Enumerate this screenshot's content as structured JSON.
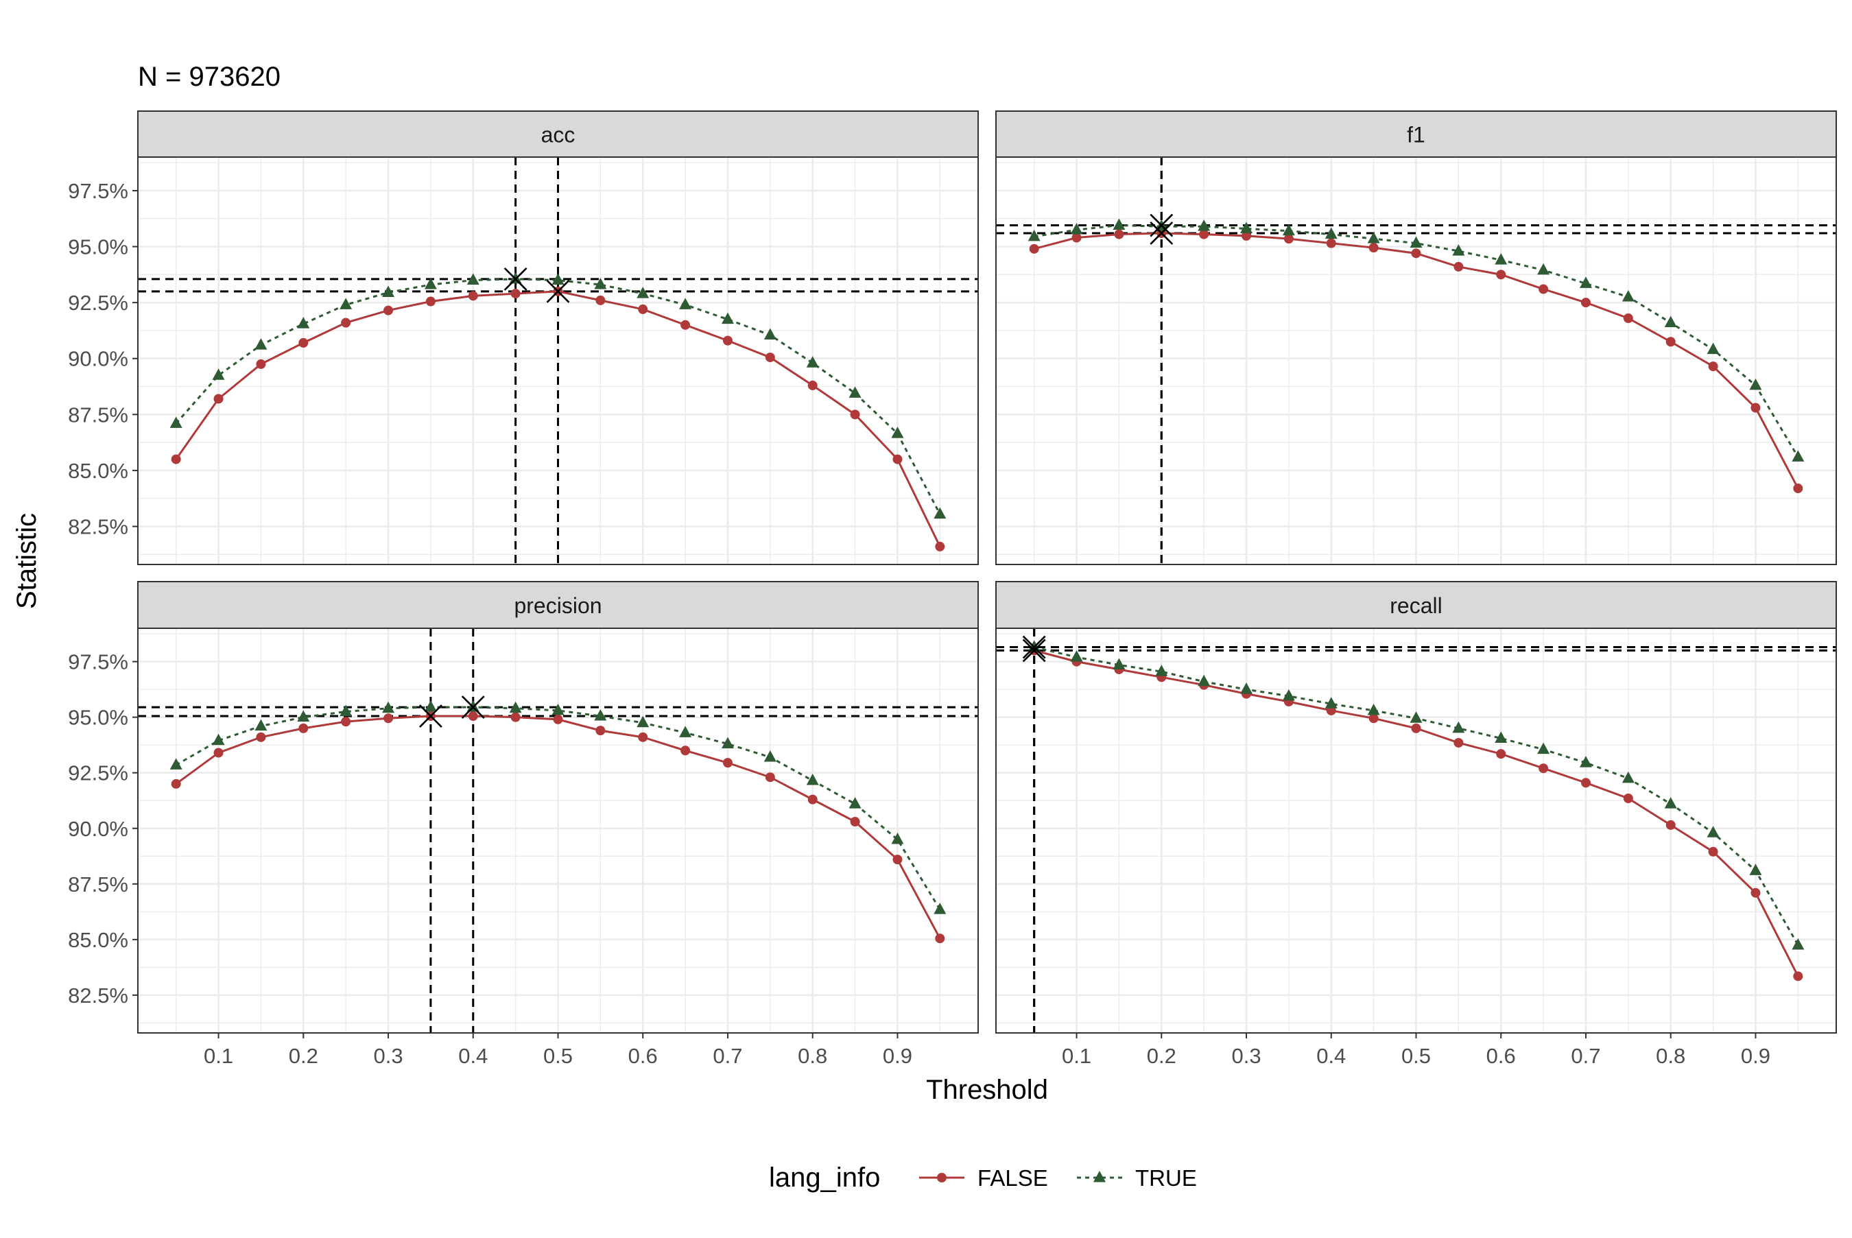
{
  "subtitle": "N = 973620",
  "xlabel": "Threshold",
  "ylabel": "Statistic",
  "legend": {
    "title": "lang_info",
    "entries": [
      {
        "label": "FALSE",
        "series": "FALSE"
      },
      {
        "label": "TRUE",
        "series": "TRUE"
      }
    ],
    "placement": "bottom"
  },
  "colors": {
    "FALSE": "#B03A3A",
    "TRUE": "#2E5A34",
    "strip_bg": "#D9D9D9",
    "grid": "#EBEBEB",
    "panel_border": "#333333",
    "marker": "#000000"
  },
  "chart_data": {
    "type": "line",
    "facets": [
      "acc",
      "f1",
      "precision",
      "recall"
    ],
    "layout": "2x2",
    "x": [
      0.05,
      0.1,
      0.15,
      0.2,
      0.25,
      0.3,
      0.35,
      0.4,
      0.45,
      0.5,
      0.55,
      0.6,
      0.65,
      0.7,
      0.75,
      0.8,
      0.85,
      0.9,
      0.95
    ],
    "x_ticks": [
      "0.1",
      "0.2",
      "0.3",
      "0.4",
      "0.5",
      "0.6",
      "0.7",
      "0.8",
      "0.9"
    ],
    "x_tick_values": [
      0.1,
      0.2,
      0.3,
      0.4,
      0.5,
      0.6,
      0.7,
      0.8,
      0.9
    ],
    "xlim": [
      0.005,
      0.995
    ],
    "y_ticks": [
      "82.5%",
      "85.0%",
      "87.5%",
      "90.0%",
      "92.5%",
      "95.0%",
      "97.5%"
    ],
    "y_tick_values": [
      0.825,
      0.85,
      0.875,
      0.9,
      0.925,
      0.95,
      0.975
    ],
    "ylim": [
      0.808,
      0.99
    ],
    "grid": true,
    "panels": [
      {
        "name": "acc",
        "series": [
          {
            "name": "FALSE",
            "values": [
              0.855,
              0.882,
              0.8975,
              0.907,
              0.916,
              0.9215,
              0.9255,
              0.928,
              0.929,
              0.93,
              0.926,
              0.922,
              0.915,
              0.908,
              0.9005,
              0.888,
              0.875,
              0.855,
              0.816
            ]
          },
          {
            "name": "TRUE",
            "values": [
              0.871,
              0.8925,
              0.906,
              0.9155,
              0.924,
              0.9295,
              0.933,
              0.935,
              0.9355,
              0.935,
              0.933,
              0.929,
              0.924,
              0.9175,
              0.9105,
              0.898,
              0.8845,
              0.8665,
              0.8305
            ]
          }
        ],
        "best": [
          {
            "series": "FALSE",
            "x": 0.5,
            "y": 0.93
          },
          {
            "series": "TRUE",
            "x": 0.45,
            "y": 0.9355
          }
        ]
      },
      {
        "name": "f1",
        "series": [
          {
            "name": "FALSE",
            "values": [
              0.949,
              0.954,
              0.9555,
              0.956,
              0.9555,
              0.9548,
              0.9535,
              0.9515,
              0.9495,
              0.947,
              0.941,
              0.9375,
              0.931,
              0.925,
              0.918,
              0.9075,
              0.8965,
              0.878,
              0.842
            ]
          },
          {
            "name": "TRUE",
            "values": [
              0.9545,
              0.9575,
              0.9595,
              0.959,
              0.959,
              0.958,
              0.957,
              0.9555,
              0.9535,
              0.9515,
              0.948,
              0.944,
              0.9395,
              0.9335,
              0.9275,
              0.916,
              0.904,
              0.888,
              0.856
            ]
          }
        ],
        "best": [
          {
            "series": "FALSE",
            "x": 0.2,
            "y": 0.956
          },
          {
            "series": "TRUE",
            "x": 0.2,
            "y": 0.9595
          }
        ]
      },
      {
        "name": "precision",
        "series": [
          {
            "name": "FALSE",
            "values": [
              0.92,
              0.934,
              0.941,
              0.945,
              0.948,
              0.9495,
              0.9505,
              0.9505,
              0.95,
              0.949,
              0.944,
              0.941,
              0.935,
              0.9295,
              0.923,
              0.913,
              0.903,
              0.886,
              0.8505
            ]
          },
          {
            "name": "TRUE",
            "values": [
              0.9285,
              0.9395,
              0.946,
              0.95,
              0.9525,
              0.954,
              0.9545,
              0.9545,
              0.954,
              0.953,
              0.9505,
              0.9475,
              0.943,
              0.938,
              0.932,
              0.9215,
              0.911,
              0.895,
              0.8635
            ]
          }
        ],
        "best": [
          {
            "series": "FALSE",
            "x": 0.35,
            "y": 0.9505
          },
          {
            "series": "TRUE",
            "x": 0.4,
            "y": 0.9545
          }
        ]
      },
      {
        "name": "recall",
        "series": [
          {
            "name": "FALSE",
            "values": [
              0.98,
              0.975,
              0.9715,
              0.968,
              0.9645,
              0.9605,
              0.957,
              0.953,
              0.9495,
              0.945,
              0.9385,
              0.9335,
              0.927,
              0.9205,
              0.9135,
              0.9015,
              0.8895,
              0.871,
              0.8335
            ]
          },
          {
            "name": "TRUE",
            "values": [
              0.9815,
              0.977,
              0.9735,
              0.9705,
              0.966,
              0.9625,
              0.9595,
              0.956,
              0.953,
              0.9495,
              0.945,
              0.9405,
              0.9355,
              0.9295,
              0.9225,
              0.911,
              0.898,
              0.881,
              0.8475
            ]
          }
        ],
        "best": [
          {
            "series": "FALSE",
            "x": 0.05,
            "y": 0.98
          },
          {
            "series": "TRUE",
            "x": 0.05,
            "y": 0.9815
          }
        ]
      }
    ]
  }
}
